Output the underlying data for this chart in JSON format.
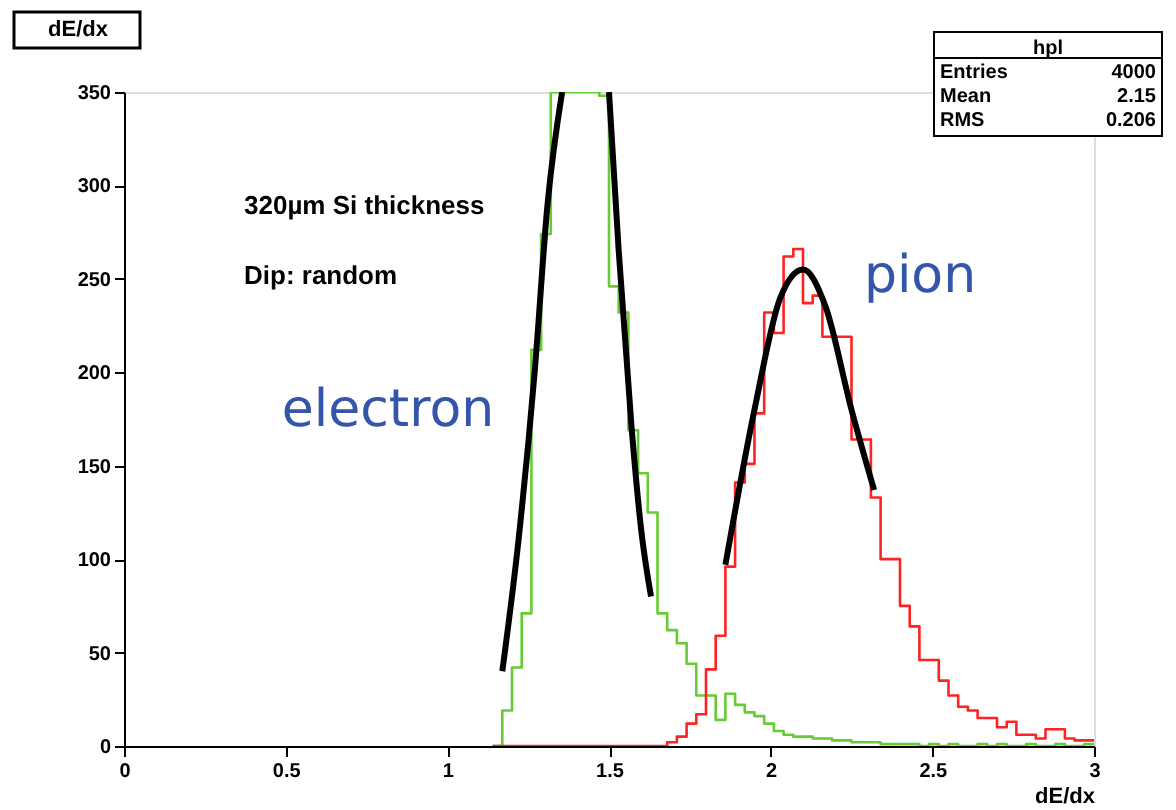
{
  "chart_data": {
    "type": "histogram",
    "title": "dE/dx",
    "xlabel": "dE/dx",
    "bins": [
      1.14,
      1.17,
      1.2,
      1.23,
      1.26,
      1.29,
      1.32,
      1.35,
      1.38,
      1.41,
      1.44,
      1.47,
      1.5,
      1.53,
      1.56,
      1.59,
      1.62,
      1.65,
      1.68,
      1.71,
      1.74,
      1.77,
      1.8,
      1.83,
      1.86,
      1.89,
      1.92,
      1.95,
      1.98,
      2.01,
      2.04,
      2.07,
      2.1,
      2.13,
      2.16,
      2.19,
      2.22,
      2.25,
      2.28,
      2.31,
      2.34,
      2.37,
      2.4,
      2.43,
      2.46,
      2.49,
      2.52,
      2.55,
      2.58,
      2.61,
      2.64,
      2.67,
      2.7,
      2.73,
      2.76,
      2.79,
      2.82,
      2.85,
      2.88,
      2.91,
      2.94,
      2.97,
      3.0
    ],
    "series": [
      {
        "color": "#66cc33",
        "values": [
          0,
          19,
          42,
          71,
          212,
          274,
          350,
          350,
          350,
          350,
          350,
          348,
          246,
          232,
          169,
          146,
          125,
          71,
          62,
          55,
          44,
          27,
          27,
          14,
          28,
          22,
          18,
          16,
          12,
          8,
          6,
          5,
          5,
          4,
          4,
          3,
          3,
          2,
          2,
          2,
          1,
          1,
          1,
          1,
          0,
          1,
          0,
          1,
          0,
          0,
          1,
          0,
          1,
          0,
          0,
          1,
          0,
          0,
          1,
          0,
          0,
          1
        ]
      },
      {
        "color": "#ff2222",
        "values": [
          0,
          0,
          0,
          0,
          0,
          0,
          0,
          0,
          0,
          0,
          0,
          0,
          0,
          0,
          0,
          0,
          0,
          0,
          2,
          5,
          12,
          17,
          41,
          59,
          96,
          141,
          151,
          178,
          232,
          221,
          262,
          266,
          237,
          241,
          219,
          219,
          219,
          164,
          164,
          133,
          100,
          100,
          75,
          64,
          46,
          46,
          35,
          27,
          21,
          19,
          15,
          15,
          10,
          13,
          6,
          6,
          4,
          9,
          9,
          4,
          3,
          3
        ]
      },
      {
        "type": "line",
        "color": "#000000",
        "x": [
          1.17,
          1.22,
          1.27,
          1.31,
          1.355,
          1.43,
          1.5,
          1.53,
          1.57,
          1.6,
          1.63
        ],
        "values": [
          40,
          110,
          200,
          290,
          350,
          null,
          350,
          265,
          170,
          115,
          80
        ]
      },
      {
        "type": "line",
        "color": "#000000",
        "x": [
          1.86,
          1.95,
          2.03,
          2.1,
          2.17,
          2.25,
          2.32
        ],
        "values": [
          97,
          180,
          240,
          255,
          235,
          180,
          137
        ]
      }
    ],
    "xlim": [
      0,
      3
    ],
    "ylim": [
      0,
      350
    ],
    "xticks": [
      0,
      0.5,
      1,
      1.5,
      2,
      2.5,
      3
    ],
    "yticks": [
      0,
      50,
      100,
      150,
      200,
      250,
      300,
      350
    ],
    "annotations": [
      "electron",
      "pion",
      "320µm Si thickness",
      "Dip: random",
      "hpl",
      "Entries 4000",
      "Mean 2.15",
      "RMS 0.206"
    ]
  }
}
